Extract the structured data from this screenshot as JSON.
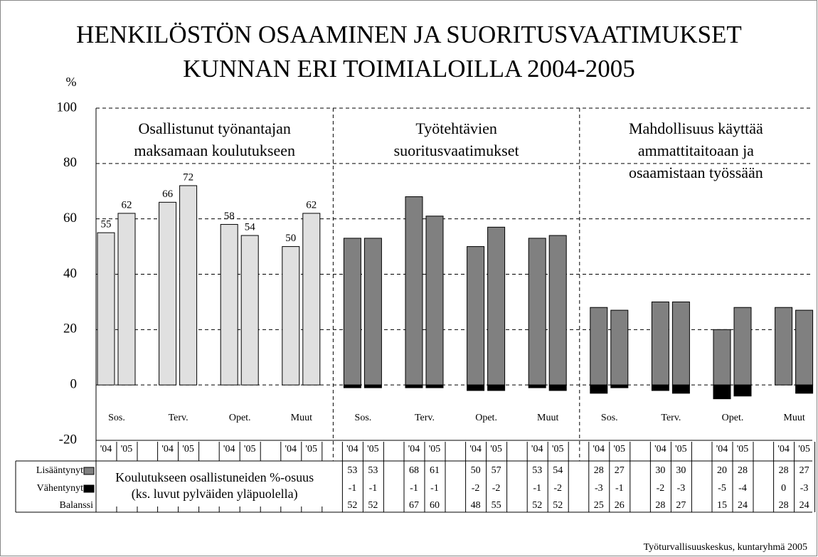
{
  "chart_data": {
    "type": "bar",
    "title": [
      "HENKILÖSTÖN OSAAMINEN JA SUORITUSVAATIMUKSET",
      "KUNNAN ERI TOIMIALOILLA  2004-2005"
    ],
    "y_label": "%",
    "ylim": [
      -20,
      100
    ],
    "yticks": [
      -20,
      0,
      20,
      40,
      60,
      80,
      100
    ],
    "grid": true,
    "years": [
      "'04",
      "'05"
    ],
    "table_rows": [
      "Lisääntynyt",
      "Vähentynyt",
      "Balanssi"
    ],
    "increase_color": "#808080",
    "decrease_color": "#000000",
    "source": "Työturvallisuuskeskus, kuntaryhmä 2005",
    "panels": [
      {
        "title": [
          "Osallistunut työnantajan",
          "maksamaan koulutukseen"
        ],
        "categories": [
          "Sos.",
          "Terv.",
          "Opet.",
          "Muut"
        ],
        "color": "#e0e0e0",
        "values": [
          [
            55,
            62
          ],
          [
            66,
            72
          ],
          [
            58,
            54
          ],
          [
            50,
            62
          ]
        ],
        "note": [
          "Koulutukseen osallistuneiden %-osuus",
          "(ks. luvut pylväiden yläpuolella)"
        ]
      },
      {
        "title": [
          "Työtehtävien",
          "suoritusvaatimukset"
        ],
        "categories": [
          "Sos.",
          "Terv.",
          "Opet.",
          "Muut"
        ],
        "increase": [
          [
            53,
            53
          ],
          [
            68,
            61
          ],
          [
            50,
            57
          ],
          [
            53,
            54
          ]
        ],
        "decrease": [
          [
            -1,
            -1
          ],
          [
            -1,
            -1
          ],
          [
            -2,
            -2
          ],
          [
            -1,
            -2
          ]
        ],
        "balance": [
          [
            52,
            52
          ],
          [
            67,
            60
          ],
          [
            48,
            55
          ],
          [
            52,
            52
          ]
        ]
      },
      {
        "title": [
          "Mahdollisuus käyttää",
          "ammattitaitoaan ja",
          "osaamistaan työssään"
        ],
        "categories": [
          "Sos.",
          "Terv.",
          "Opet.",
          "Muut"
        ],
        "increase": [
          [
            28,
            27
          ],
          [
            30,
            30
          ],
          [
            20,
            28
          ],
          [
            28,
            27
          ]
        ],
        "decrease": [
          [
            -3,
            -1
          ],
          [
            -2,
            -3
          ],
          [
            -5,
            -4
          ],
          [
            0,
            -3
          ]
        ],
        "balance": [
          [
            25,
            26
          ],
          [
            28,
            27
          ],
          [
            15,
            24
          ],
          [
            28,
            24
          ]
        ]
      }
    ]
  }
}
